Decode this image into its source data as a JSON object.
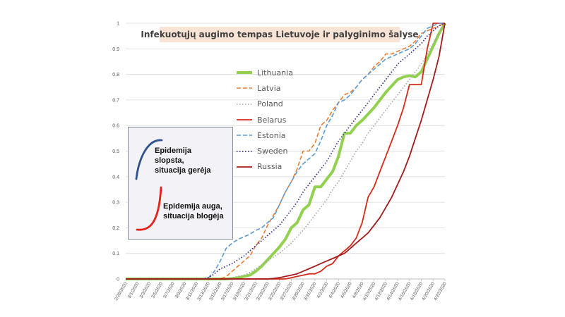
{
  "chart_data": {
    "type": "line",
    "title": "Infekuotųjų augimo tempas Lietuvoje ir palyginimo šalyse",
    "xlabel": "",
    "ylabel": "",
    "ylim": [
      0,
      1
    ],
    "yticks": [
      "0",
      "0.1",
      "0.2",
      "0.3",
      "0.4",
      "0.5",
      "0.6",
      "0.7",
      "0.8",
      "0.9",
      "1"
    ],
    "grid": true,
    "legend_position": "center",
    "x_label_step": 2,
    "categories": [
      "2/28/2020",
      "2/29/2020",
      "3/1/2020",
      "3/2/2020",
      "3/3/2020",
      "3/4/2020",
      "3/5/2020",
      "3/6/2020",
      "3/7/2020",
      "3/8/2020",
      "3/9/2020",
      "3/10/2020",
      "3/11/2020",
      "3/12/2020",
      "3/13/2020",
      "3/14/2020",
      "3/15/2020",
      "3/16/2020",
      "3/17/2020",
      "3/18/2020",
      "3/19/2020",
      "3/20/2020",
      "3/21/2020",
      "3/22/2020",
      "3/23/2020",
      "3/24/2020",
      "3/25/2020",
      "3/26/2020",
      "3/27/2020",
      "3/28/2020",
      "3/29/2020",
      "3/30/2020",
      "3/31/2020",
      "4/1/2020",
      "4/2/2020",
      "4/3/2020",
      "4/4/2020",
      "4/5/2020",
      "4/6/2020",
      "4/7/2020",
      "4/8/2020",
      "4/9/2020",
      "4/10/2020",
      "4/11/2020",
      "4/12/2020",
      "4/13/2020",
      "4/14/2020",
      "4/15/2020",
      "4/16/2020",
      "4/17/2020",
      "4/18/2020",
      "4/19/2020",
      "4/20/2020",
      "4/21/2020",
      "4/22/2020"
    ],
    "series": [
      {
        "name": "Lithuania",
        "color": "#92d050",
        "dash": "solid",
        "width": 4,
        "values": [
          0,
          0,
          0,
          0,
          0,
          0,
          0,
          0,
          0,
          0,
          0,
          0,
          0,
          0,
          0,
          0,
          0,
          0,
          0.002,
          0.005,
          0.01,
          0.015,
          0.03,
          0.05,
          0.075,
          0.1,
          0.125,
          0.155,
          0.2,
          0.22,
          0.27,
          0.29,
          0.36,
          0.36,
          0.39,
          0.42,
          0.48,
          0.57,
          0.57,
          0.6,
          0.62,
          0.645,
          0.67,
          0.7,
          0.73,
          0.755,
          0.78,
          0.79,
          0.795,
          0.79,
          0.81,
          0.86,
          0.91,
          0.96,
          1
        ]
      },
      {
        "name": "Latvia",
        "color": "#ed7d31",
        "dash": "6,3",
        "width": 1.6,
        "values": [
          0,
          0,
          0,
          0,
          0,
          0,
          0,
          0,
          0,
          0,
          0,
          0,
          0,
          0,
          0,
          0,
          0,
          0.01,
          0.03,
          0.05,
          0.07,
          0.09,
          0.13,
          0.16,
          0.21,
          0.25,
          0.29,
          0.34,
          0.38,
          0.43,
          0.5,
          0.5,
          0.53,
          0.6,
          0.62,
          0.66,
          0.69,
          0.72,
          0.73,
          0.75,
          0.78,
          0.8,
          0.83,
          0.85,
          0.88,
          0.88,
          0.89,
          0.9,
          0.91,
          0.93,
          0.96,
          0.97,
          0.98,
          0.99,
          1
        ]
      },
      {
        "name": "Poland",
        "color": "#a5a5a5",
        "dash": "1.5,2.5",
        "width": 1.6,
        "values": [
          0,
          0,
          0,
          0,
          0,
          0,
          0,
          0,
          0,
          0,
          0,
          0,
          0,
          0,
          0,
          0,
          0,
          0,
          0.005,
          0.01,
          0.015,
          0.025,
          0.04,
          0.055,
          0.07,
          0.085,
          0.1,
          0.12,
          0.14,
          0.165,
          0.19,
          0.22,
          0.25,
          0.28,
          0.31,
          0.35,
          0.38,
          0.42,
          0.46,
          0.5,
          0.53,
          0.57,
          0.6,
          0.63,
          0.66,
          0.69,
          0.72,
          0.75,
          0.78,
          0.81,
          0.84,
          0.88,
          0.92,
          0.96,
          1
        ]
      },
      {
        "name": "Belarus",
        "color": "#d42a1a",
        "dash": "solid",
        "width": 1.8,
        "values": [
          0,
          0,
          0,
          0,
          0,
          0,
          0,
          0,
          0,
          0,
          0,
          0,
          0,
          0,
          0,
          0,
          0,
          0,
          0,
          0,
          0,
          0,
          0,
          0,
          0,
          0,
          0,
          0,
          0.005,
          0.01,
          0.015,
          0.02,
          0.02,
          0.03,
          0.05,
          0.06,
          0.09,
          0.11,
          0.13,
          0.16,
          0.22,
          0.32,
          0.36,
          0.42,
          0.48,
          0.54,
          0.6,
          0.67,
          0.76,
          0.76,
          0.76,
          0.9,
          1,
          1,
          1
        ]
      },
      {
        "name": "Estonia",
        "color": "#5b9bd5",
        "dash": "6,3",
        "width": 1.6,
        "values": [
          0,
          0,
          0,
          0,
          0,
          0,
          0,
          0,
          0,
          0,
          0,
          0,
          0,
          0,
          0.005,
          0.03,
          0.07,
          0.12,
          0.14,
          0.155,
          0.165,
          0.175,
          0.19,
          0.2,
          0.22,
          0.24,
          0.29,
          0.34,
          0.38,
          0.42,
          0.45,
          0.47,
          0.49,
          0.54,
          0.6,
          0.64,
          0.69,
          0.7,
          0.72,
          0.75,
          0.78,
          0.8,
          0.82,
          0.84,
          0.86,
          0.87,
          0.88,
          0.89,
          0.9,
          0.92,
          0.95,
          0.98,
          0.99,
          1,
          1
        ]
      },
      {
        "name": "Sweden",
        "color": "#44318a",
        "dash": "1.5,2.5",
        "width": 1.8,
        "values": [
          0,
          0,
          0,
          0,
          0,
          0,
          0,
          0,
          0,
          0,
          0,
          0,
          0,
          0,
          0.005,
          0.02,
          0.04,
          0.05,
          0.06,
          0.075,
          0.09,
          0.11,
          0.13,
          0.15,
          0.17,
          0.19,
          0.21,
          0.24,
          0.27,
          0.3,
          0.34,
          0.37,
          0.4,
          0.43,
          0.46,
          0.5,
          0.54,
          0.57,
          0.6,
          0.63,
          0.66,
          0.69,
          0.72,
          0.75,
          0.78,
          0.81,
          0.84,
          0.86,
          0.88,
          0.9,
          0.92,
          0.95,
          0.97,
          0.99,
          1
        ]
      },
      {
        "name": "Russia",
        "color": "#a31b1b",
        "dash": "solid",
        "width": 1.8,
        "values": [
          0,
          0,
          0,
          0,
          0,
          0,
          0,
          0,
          0,
          0,
          0,
          0,
          0,
          0,
          0,
          0,
          0,
          0,
          0,
          0,
          0,
          0,
          0,
          0,
          0,
          0.002,
          0.005,
          0.01,
          0.015,
          0.02,
          0.03,
          0.04,
          0.05,
          0.06,
          0.07,
          0.08,
          0.09,
          0.1,
          0.12,
          0.14,
          0.16,
          0.18,
          0.21,
          0.24,
          0.28,
          0.32,
          0.37,
          0.42,
          0.48,
          0.55,
          0.62,
          0.7,
          0.78,
          0.87,
          1
        ]
      }
    ]
  },
  "inset": {
    "top_lines": [
      "Epidemija",
      "slopsta,",
      "situacija gerėja"
    ],
    "bottom_lines": [
      "Epidemija auga,",
      "situacija blogėja"
    ],
    "top_color": "#2f528f",
    "bottom_color": "#e2231a"
  }
}
